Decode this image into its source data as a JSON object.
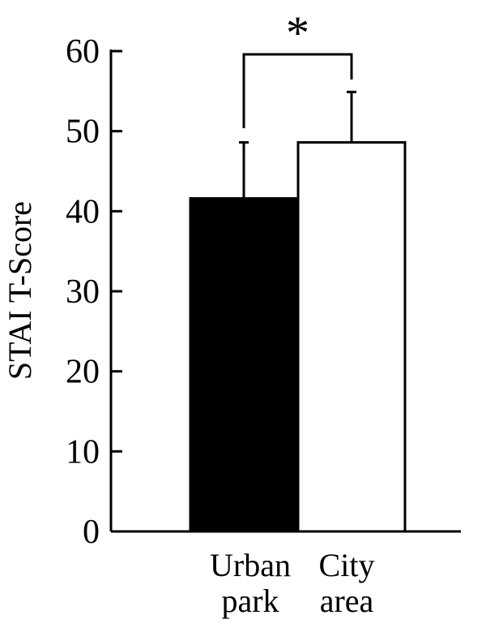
{
  "chart_data": {
    "type": "bar",
    "title": "",
    "xlabel": "",
    "ylabel": "STAI T-Score",
    "ylim": [
      0,
      60
    ],
    "yticks": [
      0,
      10,
      20,
      30,
      40,
      50,
      60
    ],
    "grid": false,
    "categories": [
      {
        "lines": [
          "Urban",
          "park"
        ]
      },
      {
        "lines": [
          "City",
          "area"
        ]
      }
    ],
    "values": [
      41.6,
      48.6
    ],
    "error_upper": [
      48.6,
      54.9
    ],
    "colors": [
      "#000000",
      "#ffffff"
    ],
    "significance": {
      "label": "*",
      "between": [
        0,
        1
      ]
    }
  }
}
